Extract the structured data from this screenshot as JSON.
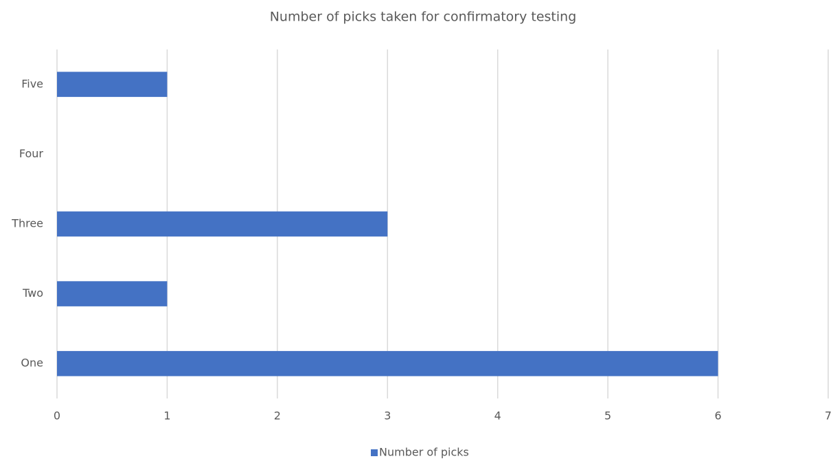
{
  "chart_data": {
    "type": "bar",
    "orientation": "horizontal",
    "title": "Number of picks taken for confirmatory testing",
    "categories": [
      "One",
      "Two",
      "Three",
      "Four",
      "Five"
    ],
    "series": [
      {
        "name": "Number of picks",
        "color": "#4472c4",
        "values": [
          6,
          1,
          3,
          0,
          1
        ]
      }
    ],
    "xlim": [
      0,
      7
    ],
    "xticks": [
      0,
      1,
      2,
      3,
      4,
      5,
      6,
      7
    ],
    "grid": true,
    "legend": "bottom"
  }
}
